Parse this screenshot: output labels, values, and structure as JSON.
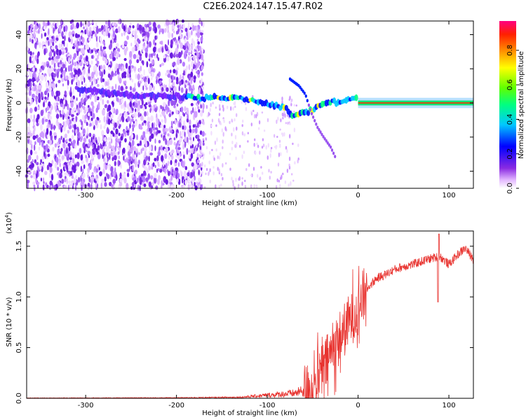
{
  "title": "C2E6.2024.147.15.47.R02",
  "chart_data": [
    {
      "type": "heatmap",
      "xlabel": "Height of straight line (km)",
      "ylabel": "Frequency (Hz)",
      "xlim": [
        -365,
        127
      ],
      "ylim": [
        -50,
        48
      ],
      "xticks": [
        -300,
        -200,
        -100,
        0,
        100
      ],
      "yticks": [
        -40,
        -20,
        0,
        20,
        40
      ],
      "colorbar": {
        "label": "Normalized spectral amplitude",
        "range": [
          0,
          0.97
        ],
        "ticks": [
          0.0,
          0.2,
          0.4,
          0.6,
          0.8
        ]
      },
      "ridge": {
        "x": [
          -305,
          -260,
          -235,
          -200,
          -180,
          -160,
          -140,
          -120,
          -100,
          -80,
          -70,
          -60,
          -50,
          -40,
          -30,
          -20,
          -10,
          0,
          10,
          20,
          40,
          80,
          127
        ],
        "y": [
          8,
          5,
          4,
          4,
          3,
          3,
          3,
          2,
          0,
          -3,
          -8,
          -6,
          -4,
          0,
          1,
          0,
          2,
          4,
          0,
          0,
          0,
          0,
          0
        ]
      },
      "branch": {
        "x": [
          -75,
          -65,
          -58,
          -52,
          -45,
          -38,
          -30,
          -24
        ],
        "y": [
          14,
          10,
          5,
          -5,
          -14,
          -20,
          -26,
          -33
        ]
      }
    },
    {
      "type": "line",
      "xlabel": "Height of straight line (km)",
      "ylabel": "SNR (10 * v/v)",
      "multiplier": "(x10",
      "multiplier_exp": "4",
      "multiplier_close": ")",
      "xlim": [
        -365,
        127
      ],
      "ylim": [
        0,
        1.65
      ],
      "xticks": [
        -300,
        -200,
        -100,
        0,
        100
      ],
      "yticks": [
        0.0,
        0.5,
        1.0,
        1.5
      ],
      "color": "#e8322e",
      "envelope": {
        "x": [
          -365,
          -200,
          -130,
          -100,
          -70,
          -50,
          -40,
          -30,
          -20,
          -10,
          0,
          10,
          20,
          30,
          40,
          50,
          60,
          70,
          80,
          90,
          100,
          110,
          118,
          127
        ],
        "y": [
          0.003,
          0.005,
          0.01,
          0.03,
          0.05,
          0.1,
          0.25,
          0.45,
          0.6,
          0.75,
          0.9,
          1.08,
          1.18,
          1.22,
          1.27,
          1.3,
          1.32,
          1.35,
          1.38,
          1.4,
          1.32,
          1.42,
          1.48,
          1.37
        ]
      }
    }
  ]
}
